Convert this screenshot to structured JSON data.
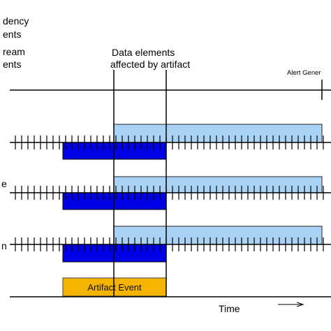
{
  "labels": {
    "top_left_line1": "dency",
    "top_left_line2": "ents",
    "stream_line1": "ream",
    "stream_line2": "ents",
    "affected_line1": "Data elements",
    "affected_line2": "affected by artifact",
    "alert": "Alert Gener",
    "row2_left": "e",
    "row3_left": "n",
    "artifact_event": "Artifact Event",
    "time_axis": "Time"
  },
  "colors": {
    "light_block": "#a9d2f4",
    "dark_block": "#0000e6",
    "artifact_fill": "#f5b400",
    "line": "#000000"
  }
}
